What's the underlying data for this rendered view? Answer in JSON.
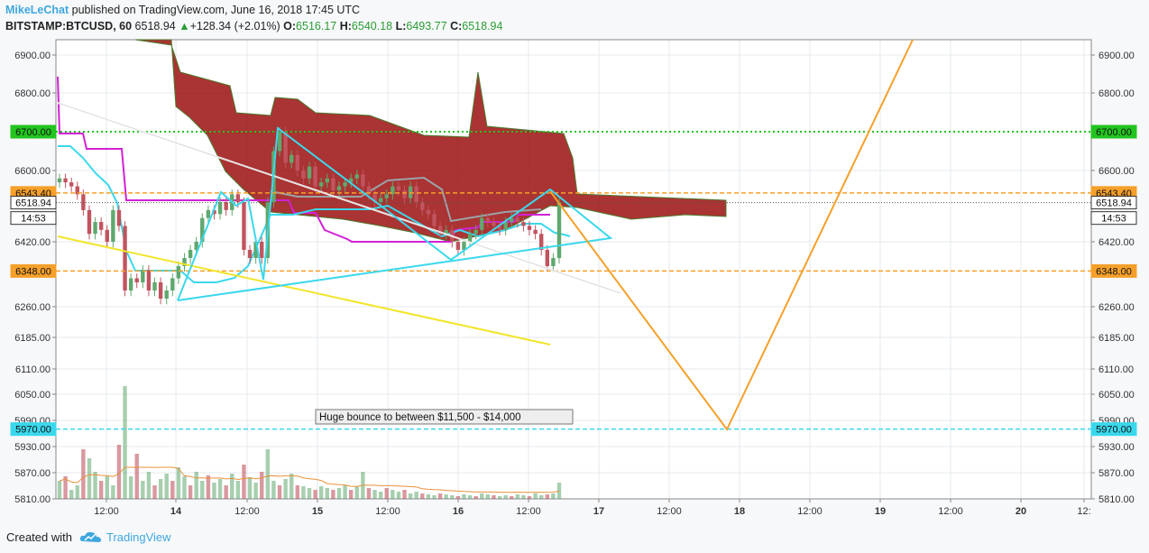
{
  "header": {
    "author": "MikeLeChat",
    "published": "published on TradingView.com, June 16, 2018 17:45 UTC",
    "symbol": "BITSTAMP:BTCUSD, 60",
    "last": "6518.94",
    "arrow": "▲",
    "change": "+128.34 (+2.01%)",
    "o_label": "O:",
    "o": "6516.17",
    "h_label": "H:",
    "h": "6540.18",
    "l_label": "L:",
    "l": "6493.77",
    "c_label": "C:",
    "c": "6518.94"
  },
  "footer": {
    "created_with": "Created with",
    "brand": "TradingView",
    "logo_icon": "tradingview-cloud-icon"
  },
  "colors": {
    "up": "#5fa86e",
    "down": "#c0545f",
    "cloud": "#9b0f0f",
    "cyan": "#3ad8ec",
    "magenta": "#d221d6",
    "yellow": "#f2e52a",
    "orange": "#f5a02a",
    "green_line": "#22c41f"
  },
  "chart_data": {
    "type": "candlestick",
    "y_ticks": [
      "6900.00",
      "6800.00",
      "6600.00",
      "6420.00",
      "6260.00",
      "6185.00",
      "6110.00",
      "6050.00",
      "5990.00",
      "5930.00",
      "5870.00",
      "5810.00"
    ],
    "x_ticks": [
      "12:00",
      "14",
      "12:00",
      "15",
      "12:00",
      "16",
      "12:00",
      "17",
      "12:00",
      "18",
      "12:00",
      "19",
      "12:00",
      "20",
      "12:"
    ],
    "price_labels": [
      {
        "text": "6700.00",
        "price": 6700,
        "color": "#22c41f",
        "line": "dotted"
      },
      {
        "text": "6543.40",
        "price": 6543.4,
        "color": "#f5a02a",
        "line": "dashed"
      },
      {
        "text": "6518.94",
        "price": 6518.94,
        "color": "#ffffff",
        "line": "dotted-gray"
      },
      {
        "text": "14:53",
        "price": 6480,
        "color": "#ffffff",
        "line": "none"
      },
      {
        "text": "6348.00",
        "price": 6348,
        "color": "#f5a02a",
        "line": "dashed"
      },
      {
        "text": "5970.00",
        "price": 5970,
        "color": "#3ad8ec",
        "line": "dashed"
      }
    ],
    "annotation": "Huge bounce to between $11,500 - $14,000",
    "last_price": 6518.94
  }
}
